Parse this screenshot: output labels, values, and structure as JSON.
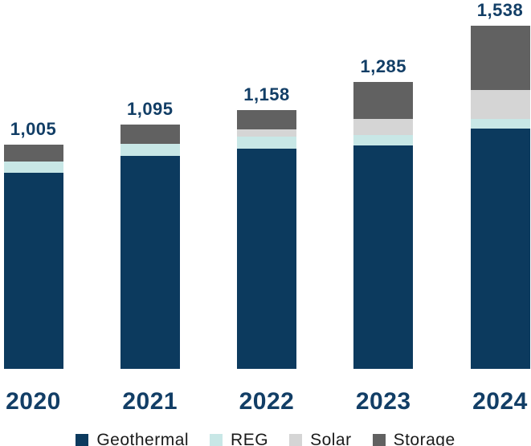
{
  "chart_data": {
    "type": "bar",
    "stacked": true,
    "orientation": "vertical",
    "title": "",
    "xlabel": "",
    "ylabel": "",
    "grid": false,
    "axes_shown": false,
    "categories": [
      "2020",
      "2021",
      "2022",
      "2023",
      "2024"
    ],
    "totals": [
      1005,
      1095,
      1158,
      1285,
      1538
    ],
    "total_labels": [
      "1,005",
      "1,095",
      "1,158",
      "1,285",
      "1,538"
    ],
    "series": [
      {
        "name": "Geothermal",
        "color": "#0c3a5e",
        "values": [
          880,
          953,
          985,
          999,
          1076
        ]
      },
      {
        "name": "REG",
        "color": "#c8e7e6",
        "values": [
          50,
          55,
          54,
          47,
          43
        ]
      },
      {
        "name": "Solar",
        "color": "#d5d5d5",
        "values": [
          0,
          0,
          32,
          72,
          130
        ]
      },
      {
        "name": "Storage",
        "color": "#616161",
        "values": [
          75,
          87,
          87,
          167,
          289
        ]
      }
    ],
    "legend": {
      "position": "bottom",
      "entries": [
        {
          "label": "Geothermal",
          "color": "#0c3a5e"
        },
        {
          "label": "REG",
          "color": "#c8e7e6"
        },
        {
          "label": "Solar",
          "color": "#d5d5d5"
        },
        {
          "label": "Storage",
          "color": "#616161"
        }
      ]
    },
    "value_label_color": "#123e66",
    "category_label_color": "#123e66",
    "legend_text_color": "#1a1a1a"
  }
}
